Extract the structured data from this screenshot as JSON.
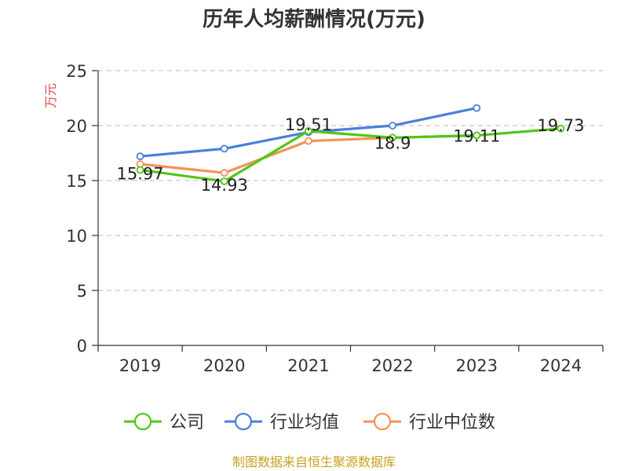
{
  "chart_data": {
    "type": "line",
    "title": "历年人均薪酬情况(万元)",
    "ylabel": "万元",
    "xlabel": "",
    "categories": [
      "2019",
      "2020",
      "2021",
      "2022",
      "2023",
      "2024"
    ],
    "ylim": [
      0,
      25
    ],
    "yticks": [
      0,
      5,
      10,
      15,
      20,
      25
    ],
    "grid": true,
    "legend_position": "bottom",
    "series": [
      {
        "name": "公司",
        "color": "#52c41a",
        "values": [
          15.97,
          14.93,
          19.51,
          18.9,
          19.11,
          19.73
        ],
        "labels": [
          "15.97",
          "14.93",
          "19.51",
          "18.9",
          "19.11",
          "19.73"
        ]
      },
      {
        "name": "行业均值",
        "color": "#4a7fdb",
        "values": [
          17.2,
          17.9,
          19.4,
          20.0,
          21.6,
          null
        ]
      },
      {
        "name": "行业中位数",
        "color": "#f4925a",
        "values": [
          16.5,
          15.7,
          18.6,
          18.9,
          19.1,
          null
        ]
      }
    ],
    "source": "制图数据来自恒生聚源数据库"
  }
}
